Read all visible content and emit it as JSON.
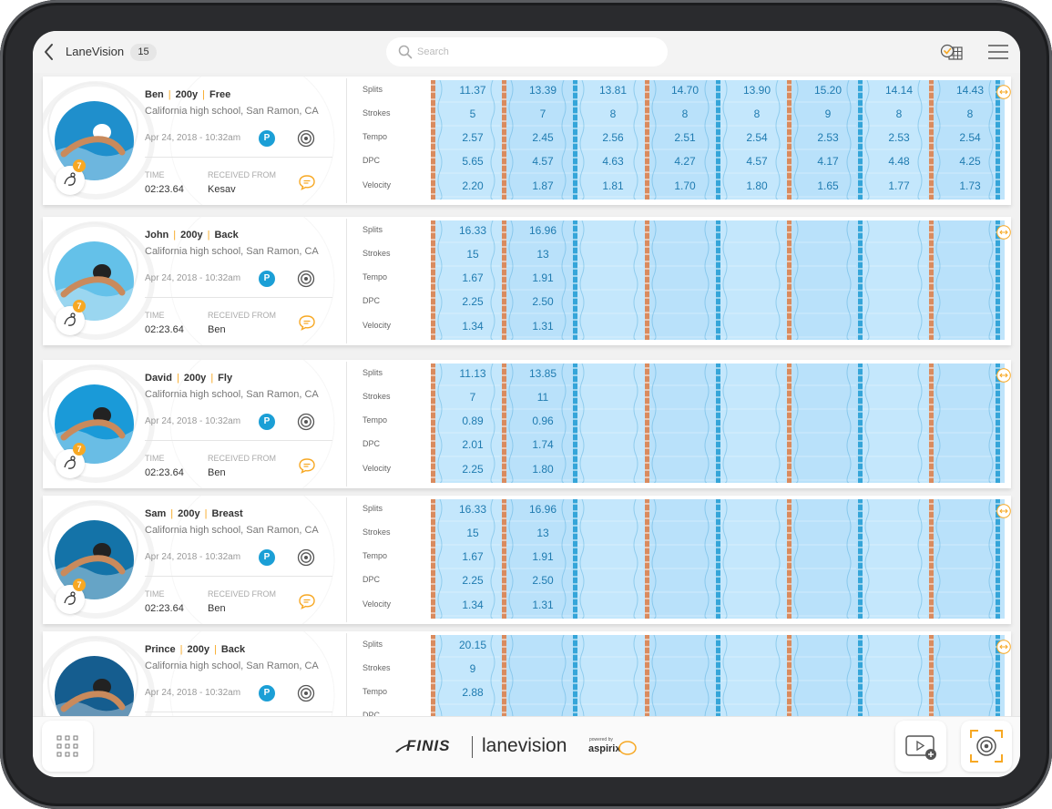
{
  "header": {
    "app_title": "LaneVision",
    "count": "15",
    "search_placeholder": "Search"
  },
  "metric_labels": [
    "Splits",
    "Strokes",
    "Tempo",
    "DPC",
    "Velocity"
  ],
  "labels": {
    "time": "TIME",
    "received_from": "RECEIVED FROM",
    "p_badge": "P"
  },
  "colors": {
    "accent_orange": "#f7a823",
    "badge_blue": "#1b9fd6",
    "pool_water": "#bfe4fb",
    "value_text": "#1f7bb0",
    "lane_rope": "#d98b5f"
  },
  "swimmers": [
    {
      "name": "Ben",
      "distance": "200y",
      "stroke": "Free",
      "school": "California high school, San Ramon, CA",
      "date": "Apr 24, 2018 - 10:32am",
      "time": "02:23.64",
      "received_from": "Kesav",
      "badge": "7",
      "laps": [
        {
          "split": "11.37",
          "strokes": "5",
          "tempo": "2.57",
          "dpc": "5.65",
          "velocity": "2.20"
        },
        {
          "split": "13.39",
          "strokes": "7",
          "tempo": "2.45",
          "dpc": "4.57",
          "velocity": "1.87"
        },
        {
          "split": "13.81",
          "strokes": "8",
          "tempo": "2.56",
          "dpc": "4.63",
          "velocity": "1.81"
        },
        {
          "split": "14.70",
          "strokes": "8",
          "tempo": "2.51",
          "dpc": "4.27",
          "velocity": "1.70"
        },
        {
          "split": "13.90",
          "strokes": "8",
          "tempo": "2.54",
          "dpc": "4.57",
          "velocity": "1.80"
        },
        {
          "split": "15.20",
          "strokes": "9",
          "tempo": "2.53",
          "dpc": "4.17",
          "velocity": "1.65"
        },
        {
          "split": "14.14",
          "strokes": "8",
          "tempo": "2.53",
          "dpc": "4.48",
          "velocity": "1.77"
        },
        {
          "split": "14.43",
          "strokes": "8",
          "tempo": "2.54",
          "dpc": "4.25",
          "velocity": "1.73"
        }
      ]
    },
    {
      "name": "John",
      "distance": "200y",
      "stroke": "Back",
      "school": "California high school, San Ramon, CA",
      "date": "Apr 24, 2018 - 10:32am",
      "time": "02:23.64",
      "received_from": "Ben",
      "badge": "7",
      "laps": [
        {
          "split": "16.33",
          "strokes": "15",
          "tempo": "1.67",
          "dpc": "2.25",
          "velocity": "1.34"
        },
        {
          "split": "16.96",
          "strokes": "13",
          "tempo": "1.91",
          "dpc": "2.50",
          "velocity": "1.31"
        }
      ]
    },
    {
      "name": "David",
      "distance": "200y",
      "stroke": "Fly",
      "school": "California high school, San Ramon, CA",
      "date": "Apr 24, 2018 - 10:32am",
      "time": "02:23.64",
      "received_from": "Ben",
      "badge": "7",
      "laps": [
        {
          "split": "11.13",
          "strokes": "7",
          "tempo": "0.89",
          "dpc": "2.01",
          "velocity": "2.25"
        },
        {
          "split": "13.85",
          "strokes": "11",
          "tempo": "0.96",
          "dpc": "1.74",
          "velocity": "1.80"
        }
      ]
    },
    {
      "name": "Sam",
      "distance": "200y",
      "stroke": "Breast",
      "school": "California high school, San Ramon, CA",
      "date": "Apr 24, 2018 - 10:32am",
      "time": "02:23.64",
      "received_from": "Ben",
      "badge": "7",
      "laps": [
        {
          "split": "16.33",
          "strokes": "15",
          "tempo": "1.67",
          "dpc": "2.25",
          "velocity": "1.34"
        },
        {
          "split": "16.96",
          "strokes": "13",
          "tempo": "1.91",
          "dpc": "2.50",
          "velocity": "1.31"
        }
      ]
    },
    {
      "name": "Prince",
      "distance": "200y",
      "stroke": "Back",
      "school": "California high school, San Ramon, CA",
      "date": "Apr 24, 2018 - 10:32am",
      "time": "",
      "received_from": "",
      "badge": "",
      "laps": [
        {
          "split": "20.15",
          "strokes": "9",
          "tempo": "2.88",
          "dpc": "",
          "velocity": ""
        }
      ]
    }
  ],
  "footer": {
    "brand_finis": "FINIS",
    "brand_lanevision": "lanevision",
    "brand_powered": "powered by",
    "brand_aspirix": "aspirix"
  }
}
